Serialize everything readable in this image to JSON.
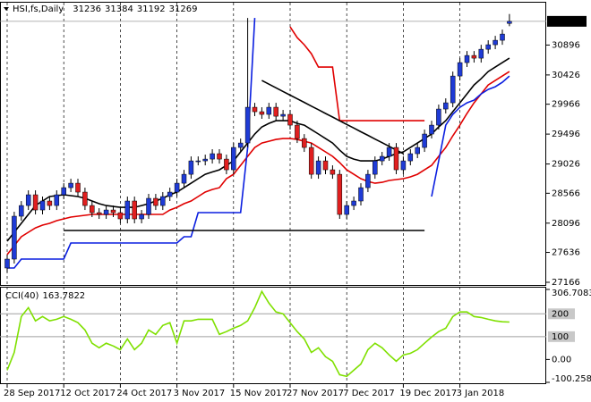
{
  "chart_data": [
    {
      "type": "candlestick",
      "title": "HSI,fs,Daily",
      "categories": [
        "28 Sep 2017",
        null,
        null,
        null,
        null,
        null,
        null,
        null,
        "12 Oct 2017",
        null,
        null,
        null,
        null,
        null,
        null,
        null,
        "24 Oct 2017",
        null,
        null,
        null,
        null,
        null,
        null,
        null,
        "3 Nov 2017",
        null,
        null,
        null,
        null,
        null,
        null,
        null,
        "15 Nov 2017",
        null,
        null,
        null,
        null,
        null,
        null,
        null,
        "27 Nov 2017",
        null,
        null,
        null,
        null,
        null,
        null,
        null,
        "7 Dec 2017",
        null,
        null,
        null,
        null,
        null,
        null,
        null,
        "19 Dec 2017",
        null,
        null,
        null,
        null,
        null,
        null,
        null,
        "3 Jan 2018",
        null,
        null,
        null,
        null,
        null,
        null,
        null
      ],
      "open": [
        27391,
        27531,
        28205,
        28373,
        28542,
        28303,
        28444,
        28373,
        28542,
        28654,
        28724,
        28584,
        28373,
        28261,
        28233,
        28303,
        28261,
        28163,
        28444,
        28163,
        28233,
        28486,
        28373,
        28514,
        28584,
        28724,
        28864,
        29075,
        29075,
        29103,
        29188,
        29103,
        28935,
        29286,
        29356,
        29918,
        29848,
        29806,
        29918,
        29777,
        29806,
        29637,
        29426,
        29286,
        28864,
        29075,
        28935,
        28864,
        28233,
        28373,
        28444,
        28654,
        28864,
        29075,
        29146,
        29286,
        28935,
        29075,
        29188,
        29286,
        29497,
        29637,
        29890,
        29988,
        30409,
        30620,
        30732,
        30690,
        30830,
        30901,
        30971,
        31236
      ],
      "high": [
        27601,
        28275,
        28443,
        28612,
        28612,
        28514,
        28514,
        28612,
        28724,
        28794,
        28794,
        28654,
        28443,
        28331,
        28373,
        28373,
        28331,
        28514,
        28514,
        28303,
        28556,
        28556,
        28584,
        28654,
        28794,
        28934,
        29145,
        29145,
        29173,
        29258,
        29258,
        29173,
        29356,
        29426,
        31322,
        29988,
        29918,
        29988,
        29988,
        29876,
        29876,
        29707,
        29496,
        29356,
        29145,
        29145,
        29005,
        28934,
        28443,
        28514,
        28724,
        28934,
        29145,
        29216,
        29356,
        29356,
        29145,
        29258,
        29356,
        29567,
        29707,
        29960,
        30058,
        30479,
        30690,
        30802,
        30802,
        30900,
        30971,
        31041,
        31139,
        31384
      ],
      "low": [
        27321,
        27461,
        28135,
        28303,
        28233,
        28233,
        28303,
        28303,
        28472,
        28584,
        28514,
        28303,
        28191,
        28163,
        28163,
        28191,
        28093,
        28093,
        28093,
        28093,
        28163,
        28303,
        28303,
        28444,
        28514,
        28654,
        28794,
        29005,
        29005,
        29033,
        29033,
        28865,
        28865,
        29216,
        29286,
        29778,
        29736,
        29736,
        29707,
        29707,
        29567,
        29356,
        29216,
        28794,
        28794,
        28865,
        28794,
        28163,
        28163,
        28303,
        28374,
        28584,
        28794,
        29005,
        29076,
        28865,
        28865,
        29005,
        29118,
        29216,
        29427,
        29567,
        29820,
        29918,
        30339,
        30550,
        30620,
        30620,
        30760,
        30831,
        30901,
        31192
      ],
      "close": [
        27531,
        28205,
        28373,
        28542,
        28303,
        28444,
        28373,
        28542,
        28654,
        28724,
        28584,
        28373,
        28261,
        28233,
        28303,
        28261,
        28163,
        28444,
        28163,
        28233,
        28486,
        28373,
        28514,
        28584,
        28724,
        28864,
        29075,
        29075,
        29103,
        29188,
        29103,
        28935,
        29286,
        29356,
        29918,
        29848,
        29806,
        29918,
        29777,
        29806,
        29637,
        29426,
        29286,
        28864,
        29075,
        28935,
        28864,
        28233,
        28373,
        28444,
        28654,
        28864,
        29075,
        29146,
        29286,
        28935,
        29075,
        29188,
        29286,
        29497,
        29637,
        29890,
        29988,
        30409,
        30620,
        30732,
        30690,
        30830,
        30901,
        30971,
        31069,
        31269
      ],
      "up_color": "#1f3bd6",
      "down_color": "#e01f1f",
      "wick_color": "#000000",
      "series": [
        {
          "color": "#000000",
          "values": [
            27812,
            27952,
            28093,
            28233,
            28373,
            28444,
            28514,
            28528,
            28542,
            28528,
            28514,
            28486,
            28444,
            28402,
            28373,
            28359,
            28345,
            28345,
            28345,
            28373,
            28402,
            28444,
            28486,
            28542,
            28584,
            28654,
            28724,
            28795,
            28864,
            28900,
            28935,
            29005,
            29075,
            29216,
            29356,
            29497,
            29609,
            29665,
            29707,
            29707,
            29707,
            29665,
            29637,
            29567,
            29497,
            29426,
            29356,
            29244,
            29146,
            29103,
            29075,
            29075,
            29075,
            29103,
            29146,
            29188,
            29216,
            29286,
            29356,
            29426,
            29497,
            29609,
            29707,
            29848,
            29988,
            30128,
            30269,
            30367,
            30479,
            30550,
            30620,
            30690
          ]
        },
        {
          "color": "#e00000",
          "values": [
            27601,
            27742,
            27882,
            27952,
            28022,
            28065,
            28093,
            28135,
            28163,
            28191,
            28205,
            28219,
            28233,
            28233,
            28233,
            28233,
            28233,
            28233,
            28233,
            28233,
            28233,
            28233,
            28233,
            28303,
            28345,
            28402,
            28444,
            28514,
            28584,
            28626,
            28654,
            28795,
            28864,
            29005,
            29146,
            29286,
            29356,
            29384,
            29412,
            29426,
            29426,
            29412,
            29384,
            29356,
            29286,
            29216,
            29146,
            29048,
            28935,
            28864,
            28795,
            28752,
            28724,
            28738,
            28767,
            28781,
            28795,
            28823,
            28864,
            28935,
            29005,
            29146,
            29286,
            29469,
            29637,
            29820,
            29988,
            30128,
            30269,
            30339,
            30409,
            30479
          ]
        },
        {
          "color": "#0a1ee0",
          "values": [
            27391,
            27391,
            27531,
            27531,
            27531,
            27531,
            27531,
            27531,
            27531,
            27784,
            27784,
            27784,
            27784,
            27784,
            27784,
            27784,
            27784,
            27784,
            27784,
            27784,
            27784,
            27784,
            27784,
            27784,
            27784,
            27882,
            27882,
            28261,
            28261,
            28261,
            28261,
            28261,
            28261,
            28261,
            29286,
            31322,
            null,
            null,
            null,
            null,
            null,
            null,
            null,
            null,
            null,
            null,
            null,
            null,
            null,
            null,
            null,
            null,
            null,
            null,
            null,
            null,
            null,
            null,
            null,
            null,
            28514,
            29075,
            29637,
            29806,
            29918,
            29988,
            30030,
            30128,
            30199,
            30241,
            30311,
            30409
          ]
        },
        {
          "color": "#e00000",
          "values": [
            null,
            null,
            null,
            null,
            null,
            null,
            null,
            null,
            null,
            null,
            null,
            null,
            null,
            null,
            null,
            null,
            null,
            null,
            null,
            null,
            null,
            null,
            null,
            null,
            null,
            null,
            null,
            null,
            null,
            null,
            null,
            null,
            null,
            null,
            null,
            null,
            null,
            null,
            null,
            null,
            31181,
            31013,
            30901,
            30760,
            30550,
            30550,
            30550,
            29707,
            29707,
            29707,
            29707,
            29707,
            29707,
            29707,
            29707,
            29707,
            29707,
            29707,
            29707,
            29707,
            null,
            null,
            null,
            null,
            null,
            null,
            null,
            null,
            null,
            null,
            null,
            null
          ]
        },
        {
          "color": "#000000",
          "values": [
            null,
            null,
            null,
            null,
            null,
            null,
            null,
            null,
            27980,
            27980,
            27980,
            27980,
            27980,
            27980,
            27980,
            27980,
            27980,
            27980,
            27980,
            27980,
            27980,
            27980,
            27980,
            27980,
            27980,
            27980,
            27980,
            27980,
            27980,
            27980,
            27980,
            27980,
            27980,
            27980,
            27980,
            27980,
            27980,
            27980,
            27980,
            27980,
            27980,
            27980,
            27980,
            27980,
            27980,
            27980,
            27980,
            27980,
            27980,
            27980,
            27980,
            27980,
            27980,
            27980,
            27980,
            27980,
            27980,
            27980,
            27980,
            27980,
            null,
            null,
            null,
            null,
            null,
            null,
            null,
            null,
            null,
            null,
            null,
            null
          ]
        },
        {
          "color": "#000000",
          "values": [
            null,
            null,
            null,
            null,
            null,
            null,
            null,
            null,
            null,
            null,
            null,
            null,
            null,
            null,
            null,
            null,
            null,
            null,
            null,
            null,
            null,
            null,
            null,
            null,
            null,
            null,
            null,
            null,
            null,
            null,
            null,
            null,
            null,
            null,
            null,
            null,
            30339,
            30281,
            30224,
            30166,
            30109,
            30051,
            29994,
            29936,
            29879,
            29821,
            29764,
            29706,
            29648,
            29591,
            29533,
            29476,
            29418,
            29361,
            29303,
            29246,
            29188,
            null,
            null,
            null,
            null,
            null,
            null,
            null,
            null,
            null,
            null,
            null,
            null,
            null,
            null,
            null
          ]
        }
      ],
      "ylim": [
        27138,
        31534
      ],
      "yticks": [
        30896,
        30426,
        29966,
        29496,
        29026,
        28566,
        28096,
        27636,
        27166
      ]
    },
    {
      "type": "line",
      "title": "CCI(40)",
      "color": "#7fe000",
      "values": [
        -47,
        31,
        188,
        227,
        169,
        188,
        169,
        176,
        188,
        176,
        161,
        129,
        71,
        51,
        71,
        59,
        43,
        90,
        43,
        71,
        129,
        110,
        149,
        161,
        71,
        169,
        169,
        176,
        176,
        176,
        110,
        122,
        137,
        149,
        169,
        227,
        298,
        247,
        208,
        200,
        161,
        122,
        90,
        31,
        51,
        12,
        -8,
        -67,
        -74,
        -47,
        -20,
        43,
        71,
        51,
        20,
        -8,
        20,
        27,
        43,
        71,
        98,
        122,
        137,
        188,
        208,
        208,
        188,
        184,
        176,
        169,
        165,
        163.7822
      ],
      "levels": [
        200,
        100
      ],
      "ylim": [
        -100.258,
        306.7083
      ],
      "yticks": [
        306.7083,
        {
          "value": 0,
          "label": "0.00"
        },
        -100.258
      ]
    }
  ]
}
